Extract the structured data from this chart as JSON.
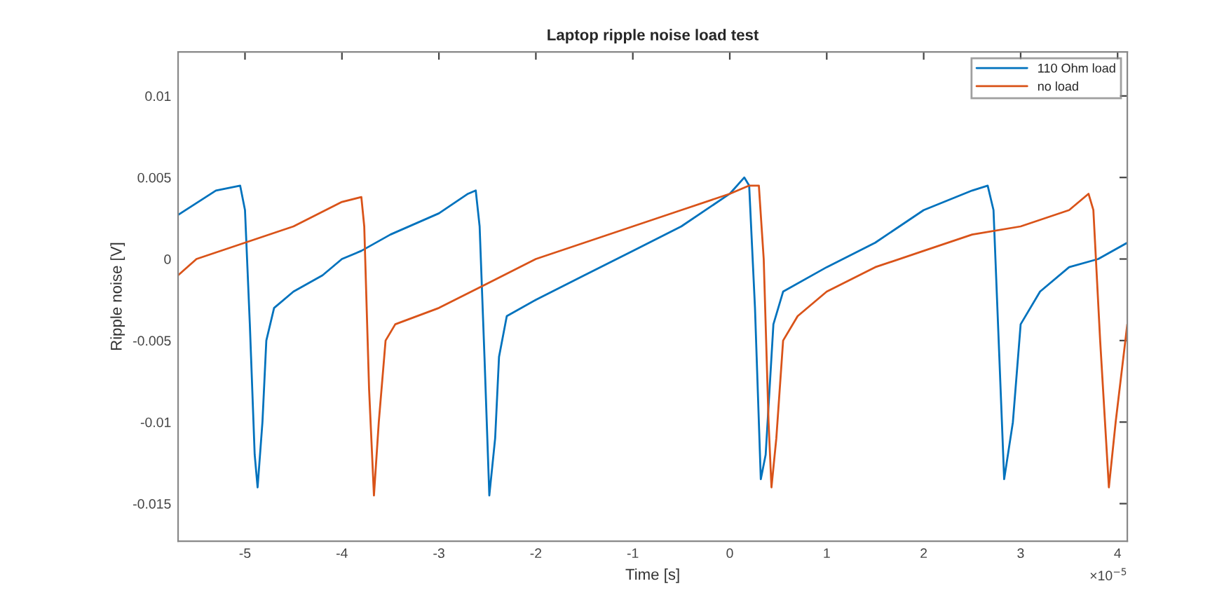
{
  "chart_data": {
    "type": "line",
    "title": "Laptop ripple noise load test",
    "xlabel": "Time [s]",
    "ylabel": "Ripple noise [V]",
    "annotations": [
      "×10$^{−5}$"
    ],
    "xlim": [
      -5.69,
      4.1
    ],
    "xticks": [
      -5,
      -4,
      -3,
      -2,
      -1,
      0,
      1,
      2,
      3,
      4
    ],
    "ylim": [
      -0.0173,
      0.0127
    ],
    "yticks": [
      -0.015,
      -0.01,
      -0.005,
      0,
      0.005,
      0.01
    ],
    "grid": false,
    "legend": "top right",
    "marker": "none",
    "line_style": "solid",
    "series": [
      {
        "name": "110 Ohm load",
        "color": "#0072bd",
        "x": [
          -5.69,
          -5.3,
          -5.05,
          -5.0,
          -4.95,
          -4.9,
          -4.87,
          -4.82,
          -4.78,
          -4.7,
          -4.5,
          -4.2,
          -4.0,
          -3.8,
          -3.5,
          -3.0,
          -2.7,
          -2.62,
          -2.58,
          -2.53,
          -2.48,
          -2.42,
          -2.38,
          -2.3,
          -2.0,
          -1.5,
          -1.0,
          -0.5,
          0.0,
          0.15,
          0.2,
          0.26,
          0.32,
          0.37,
          0.45,
          0.55,
          1.0,
          1.5,
          2.0,
          2.5,
          2.66,
          2.72,
          2.78,
          2.83,
          2.92,
          3.0,
          3.2,
          3.5,
          3.8,
          4.1
        ],
        "values": [
          0.0027,
          0.0042,
          0.0045,
          0.003,
          -0.004,
          -0.012,
          -0.014,
          -0.01,
          -0.005,
          -0.003,
          -0.002,
          -0.001,
          0.0,
          0.0005,
          0.0015,
          0.0028,
          0.004,
          0.0042,
          0.002,
          -0.006,
          -0.0145,
          -0.011,
          -0.006,
          -0.0035,
          -0.0025,
          -0.001,
          0.0005,
          0.002,
          0.004,
          0.005,
          0.0045,
          -0.003,
          -0.0135,
          -0.012,
          -0.004,
          -0.002,
          -0.0005,
          0.001,
          0.003,
          0.0042,
          0.0045,
          0.003,
          -0.006,
          -0.0135,
          -0.01,
          -0.004,
          -0.002,
          -0.0005,
          0.0,
          0.001
        ]
      },
      {
        "name": "no load",
        "color": "#d95319",
        "x": [
          -5.69,
          -5.5,
          -5.0,
          -4.5,
          -4.0,
          -3.8,
          -3.77,
          -3.72,
          -3.67,
          -3.62,
          -3.55,
          -3.45,
          -3.0,
          -2.5,
          -2.0,
          -1.5,
          -1.0,
          -0.5,
          0.0,
          0.2,
          0.3,
          0.35,
          0.4,
          0.43,
          0.48,
          0.55,
          0.7,
          1.0,
          1.5,
          2.0,
          2.5,
          3.0,
          3.5,
          3.7,
          3.75,
          3.82,
          3.91,
          3.98,
          4.1
        ],
        "values": [
          -0.001,
          0.0,
          0.001,
          0.002,
          0.0035,
          0.0038,
          0.002,
          -0.008,
          -0.0145,
          -0.01,
          -0.005,
          -0.004,
          -0.003,
          -0.0015,
          0.0,
          0.001,
          0.002,
          0.003,
          0.004,
          0.0045,
          0.0045,
          0.0,
          -0.01,
          -0.014,
          -0.011,
          -0.005,
          -0.0035,
          -0.002,
          -0.0005,
          0.0005,
          0.0015,
          0.002,
          0.003,
          0.004,
          0.003,
          -0.005,
          -0.014,
          -0.01,
          -0.004
        ]
      }
    ]
  }
}
